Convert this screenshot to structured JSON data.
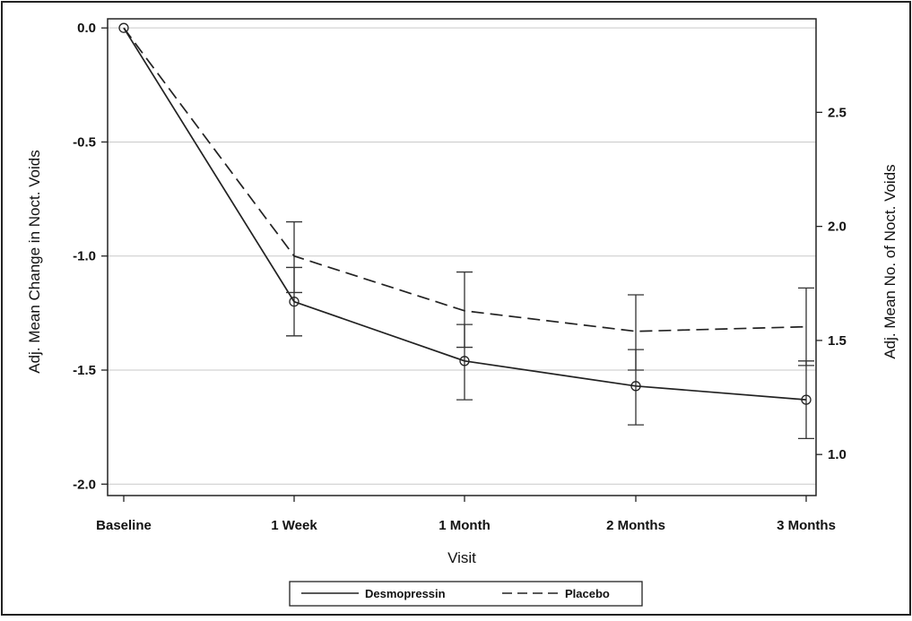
{
  "chart_data": {
    "type": "line",
    "xlabel": "Visit",
    "ylabel_left": "Adj. Mean Change in Noct. Voids",
    "ylabel_right": "Adj. Mean No. of Noct. Voids",
    "categories": [
      "Baseline",
      "1 Week",
      "1 Month",
      "2 Months",
      "3 Months"
    ],
    "ylim_left": [
      -2.05,
      0.04
    ],
    "ylim_right": [
      0.82,
      2.91
    ],
    "yticks_left": [
      0.0,
      -0.5,
      -1.0,
      -1.5,
      -2.0
    ],
    "yticks_left_labels": [
      "0.0",
      "-0.5",
      "-1.0",
      "-1.5",
      "-2.0"
    ],
    "yticks_right": [
      2.5,
      2.0,
      1.5,
      1.0
    ],
    "yticks_right_labels": [
      "2.5",
      "2.0",
      "1.5",
      "1.0"
    ],
    "grid": "horizontal",
    "legend_position": "bottom",
    "series": [
      {
        "name": "Desmopressin",
        "style": "solid",
        "markers": true,
        "values": [
          0.0,
          -1.2,
          -1.46,
          -1.57,
          -1.63
        ],
        "error_low": [
          null,
          -1.35,
          -1.63,
          -1.74,
          -1.8
        ],
        "error_high": [
          null,
          -1.05,
          -1.3,
          -1.41,
          -1.46
        ]
      },
      {
        "name": "Placebo",
        "style": "dashed",
        "markers": false,
        "values": [
          0.0,
          -1.0,
          -1.24,
          -1.33,
          -1.31
        ],
        "error_low": [
          null,
          -1.16,
          -1.4,
          -1.5,
          -1.48
        ],
        "error_high": [
          null,
          -0.85,
          -1.07,
          -1.17,
          -1.14
        ]
      }
    ]
  }
}
